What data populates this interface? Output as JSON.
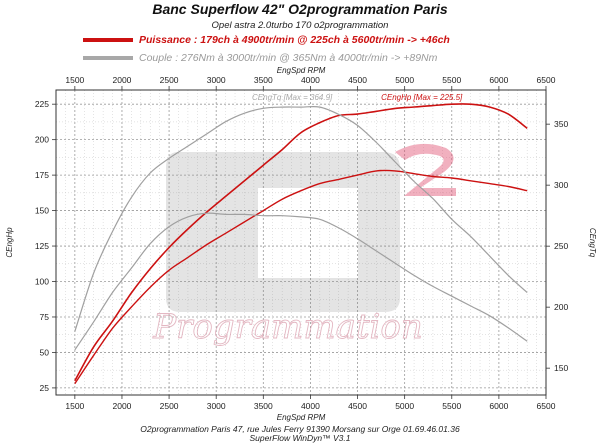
{
  "header": {
    "title": "Banc Superflow 42\" O2programmation Paris",
    "subtitle": "Opel astra 2.0turbo 170 o2programmation"
  },
  "legend": {
    "power_text": "Puissance : 179ch à 4900tr/min @ 225ch à 5600tr/min  -> +46ch",
    "torque_text": "Couple :  276Nm à 3000tr/min @ 365Nm à 4000tr/min -> +89Nm",
    "power_color": "#cc1111",
    "torque_color": "#a8a8a8"
  },
  "footer": {
    "line1": "O2programmation Paris 47, rue Jules Ferry 91390 Morsang sur Orge 01.69.46.01.36",
    "line2": "SuperFlow WinDyn™ V3.1"
  },
  "watermark": {
    "text": "Programmation"
  },
  "chart_data": {
    "type": "line",
    "xlabel": "EngSpd RPM",
    "ylabel_left": "CEngHp",
    "ylabel_right": "CEngTq",
    "xlim": [
      1300,
      6500
    ],
    "ylim_left": [
      20,
      235
    ],
    "ylim_right": [
      128,
      378
    ],
    "x_ticks": [
      "1500",
      "2000",
      "2500",
      "3000",
      "3500",
      "4000",
      "4500",
      "5000",
      "5500",
      "6000",
      "6500"
    ],
    "y_left_ticks": [
      "25",
      "50",
      "75",
      "100",
      "125",
      "150",
      "175",
      "200",
      "225"
    ],
    "y_right_ticks": [
      "150",
      "200",
      "250",
      "300",
      "350"
    ],
    "grid": true,
    "annotations": [
      {
        "text": "CEngTq [Max = 364.9]",
        "x": 3380,
        "y_left": 228,
        "color": "#a8a8a8"
      },
      {
        "text": "CEngHp [Max = 225.5]",
        "x": 4750,
        "y_left": 228,
        "color": "#cc1111"
      }
    ],
    "series": [
      {
        "key": "hp_tuned",
        "axis": "left",
        "color": "#cc1111",
        "width": 1.6,
        "x": [
          1500,
          1700,
          1900,
          2100,
          2300,
          2500,
          2700,
          2900,
          3100,
          3300,
          3500,
          3700,
          3900,
          4100,
          4300,
          4500,
          4700,
          4900,
          5100,
          5300,
          5500,
          5700,
          5900,
          6100,
          6300
        ],
        "y": [
          30,
          54,
          72,
          92,
          109,
          124,
          137,
          149,
          160,
          171,
          182,
          193,
          205,
          212,
          217,
          218,
          220,
          222,
          223,
          224,
          225,
          225,
          223,
          218,
          208
        ]
      },
      {
        "key": "hp_stock",
        "axis": "left",
        "color": "#cc1111",
        "width": 1.4,
        "x": [
          1500,
          1700,
          1900,
          2100,
          2300,
          2500,
          2700,
          2900,
          3100,
          3300,
          3500,
          3700,
          3900,
          4100,
          4300,
          4500,
          4700,
          4900,
          5100,
          5300,
          5500,
          5700,
          5900,
          6100,
          6300
        ],
        "y": [
          28,
          48,
          67,
          82,
          96,
          108,
          117,
          126,
          134,
          142,
          150,
          158,
          164,
          169,
          172,
          175,
          178,
          178,
          176,
          174,
          173,
          171,
          169,
          167,
          164
        ]
      },
      {
        "key": "tq_tuned",
        "axis": "right",
        "color": "#a0a0a0",
        "width": 1.2,
        "x": [
          1500,
          1700,
          1900,
          2100,
          2300,
          2500,
          2700,
          2900,
          3100,
          3300,
          3500,
          3700,
          3900,
          4100,
          4300,
          4500,
          4700,
          4900,
          5100,
          5300,
          5500,
          5700,
          5900,
          6100,
          6300
        ],
        "y": [
          180,
          228,
          262,
          290,
          310,
          322,
          332,
          342,
          352,
          359,
          363,
          364,
          364,
          364,
          358,
          349,
          335,
          319,
          303,
          289,
          272,
          258,
          242,
          226,
          212
        ]
      },
      {
        "key": "tq_stock",
        "axis": "right",
        "color": "#a0a0a0",
        "width": 1.2,
        "x": [
          1500,
          1700,
          1900,
          2100,
          2300,
          2500,
          2700,
          2900,
          3100,
          3300,
          3500,
          3700,
          3900,
          4100,
          4300,
          4500,
          4700,
          4900,
          5100,
          5300,
          5500,
          5700,
          5900,
          6100,
          6300
        ],
        "y": [
          165,
          188,
          212,
          232,
          252,
          266,
          274,
          277,
          276,
          276,
          275,
          275,
          274,
          272,
          265,
          256,
          246,
          236,
          226,
          217,
          209,
          201,
          193,
          183,
          172
        ]
      }
    ]
  }
}
